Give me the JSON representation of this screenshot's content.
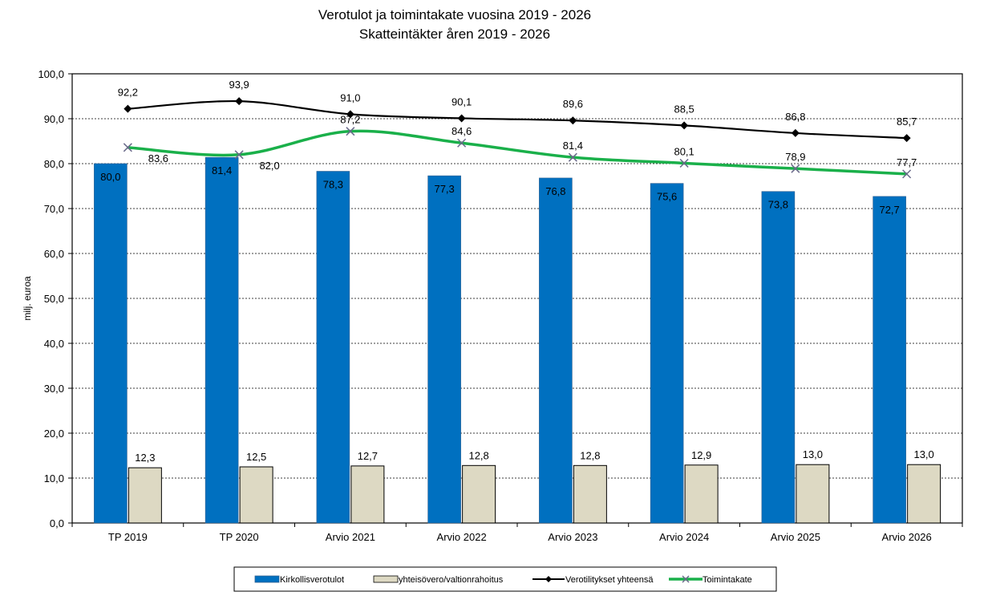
{
  "chart_data": {
    "type": "bar",
    "title": "Verotulot ja toimintakate  vuosina 2019 - 2026",
    "subtitle": "Skatteintäkter åren 2019 - 2026",
    "xlabel": "",
    "ylabel": "milj. euroa",
    "ylim": [
      0,
      100
    ],
    "yticks": [
      "0,0",
      "10,0",
      "20,0",
      "30,0",
      "40,0",
      "50,0",
      "60,0",
      "70,0",
      "80,0",
      "90,0",
      "100,0"
    ],
    "categories": [
      "TP 2019",
      "TP 2020",
      "Arvio 2021",
      "Arvio 2022",
      "Arvio 2023",
      "Arvio 2024",
      "Arvio 2025",
      "Arvio 2026"
    ],
    "series": [
      {
        "name": "Kirkollisverotulot",
        "kind": "bar",
        "color": "#0070c0",
        "values": [
          80.0,
          81.4,
          78.3,
          77.3,
          76.8,
          75.6,
          73.8,
          72.7
        ],
        "labels": [
          "80,0",
          "81,4",
          "78,3",
          "77,3",
          "76,8",
          "75,6",
          "73,8",
          "72,7"
        ]
      },
      {
        "name": "yhteisövero/valtionrahoitus",
        "kind": "bar",
        "color": "#ddd9c3",
        "values": [
          12.3,
          12.5,
          12.7,
          12.8,
          12.8,
          12.9,
          13.0,
          13.0
        ],
        "labels": [
          "12,3",
          "12,5",
          "12,7",
          "12,8",
          "12,8",
          "12,9",
          "13,0",
          "13,0"
        ]
      },
      {
        "name": "Verotilitykset yhteensä",
        "kind": "line",
        "marker": "diamond",
        "color": "#000000",
        "values": [
          92.2,
          93.9,
          91.0,
          90.1,
          89.6,
          88.5,
          86.8,
          85.7
        ],
        "labels": [
          "92,2",
          "93,9",
          "91,0",
          "90,1",
          "89,6",
          "88,5",
          "86,8",
          "85,7"
        ]
      },
      {
        "name": "Toimintakate",
        "kind": "line",
        "marker": "x",
        "color": "#1ab04a",
        "values": [
          83.6,
          82.0,
          87.2,
          84.6,
          81.4,
          80.1,
          78.9,
          77.7
        ],
        "labels": [
          "83,6",
          "82,0",
          "87,2",
          "84,6",
          "81,4",
          "80,1",
          "78,9",
          "77,7"
        ]
      }
    ],
    "grid": "horizontal-dashed",
    "legend_position": "bottom"
  }
}
